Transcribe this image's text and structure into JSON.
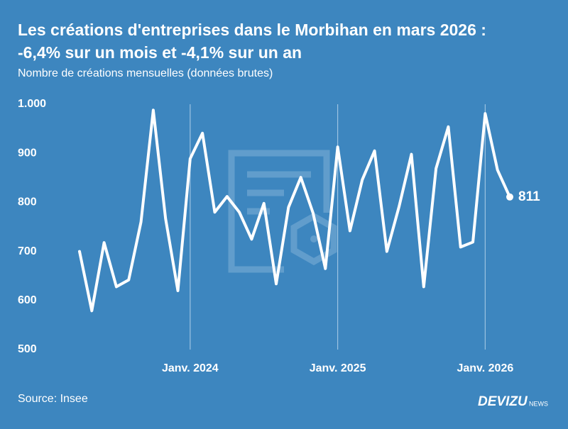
{
  "chart_data": {
    "type": "line",
    "title": [
      "Les créations d'entreprises dans le Morbihan en mars 2026 :",
      "-6,4% sur un mois et -4,1% sur un an"
    ],
    "subtitle": "Nombre de créations mensuelles (données brutes)",
    "source": "Source: Insee",
    "brand": "DEVIZU",
    "brand_suffix": "NEWS",
    "categories": [
      null,
      null,
      null,
      null,
      null,
      null,
      null,
      null,
      null,
      "Janv. 2024",
      null,
      null,
      null,
      null,
      null,
      null,
      null,
      null,
      null,
      null,
      null,
      "Janv. 2025",
      null,
      null,
      null,
      null,
      null,
      null,
      null,
      null,
      null,
      null,
      null,
      "Janv. 2026",
      null,
      null
    ],
    "values": [
      700,
      579,
      718,
      628,
      642,
      760,
      988,
      767,
      620,
      889,
      941,
      780,
      812,
      780,
      725,
      798,
      634,
      790,
      851,
      778,
      665,
      913,
      742,
      846,
      905,
      700,
      792,
      898,
      628,
      869,
      954,
      709,
      719,
      981,
      866,
      811
    ],
    "color": "#ffffff",
    "ylim": [
      500,
      1000
    ],
    "yticks": [
      500,
      600,
      700,
      800,
      900,
      {
        "value": 1000,
        "label": "1.000"
      }
    ],
    "grid": "x"
  }
}
